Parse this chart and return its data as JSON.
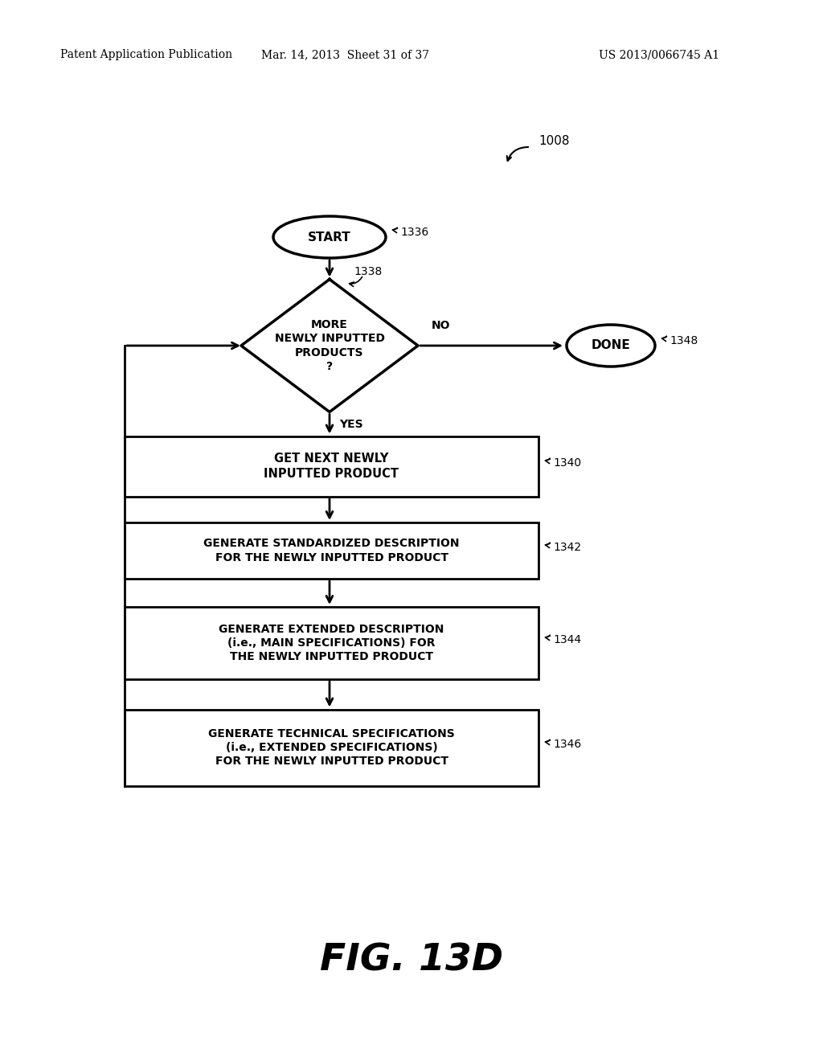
{
  "background_color": "#ffffff",
  "header_left": "Patent Application Publication",
  "header_mid": "Mar. 14, 2013  Sheet 31 of 37",
  "header_right": "US 2013/0066745 A1",
  "fig_label": "FIG. 13D"
}
